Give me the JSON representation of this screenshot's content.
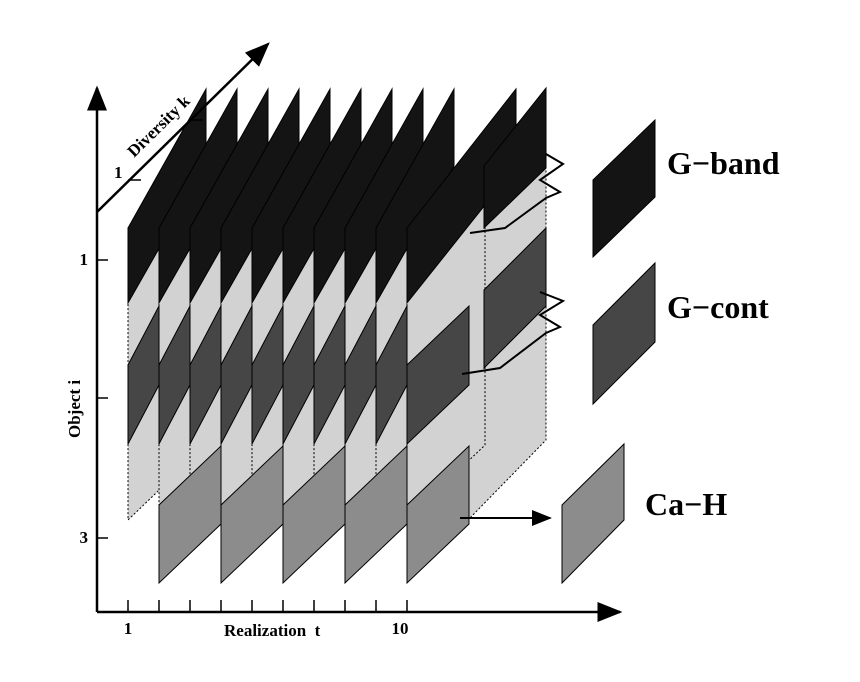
{
  "axes": {
    "object": {
      "label": "Object  i",
      "ticks": [
        "1",
        "3"
      ]
    },
    "realization": {
      "label": "Realization  t",
      "ticks": [
        "1",
        "10"
      ]
    },
    "diversity": {
      "label": "Diversity  k",
      "ticks": [
        "1"
      ]
    }
  },
  "legend": [
    {
      "id": "g-band",
      "label": "G−band",
      "color": "#141414"
    },
    {
      "id": "g-cont",
      "label": "G−cont",
      "color": "#464646"
    },
    {
      "id": "ca-h",
      "label": "Ca−H",
      "color": "#8c8c8c"
    }
  ],
  "colors": {
    "background": "#ffffff",
    "plane": "#d2d2d2",
    "g_band": "#141414",
    "g_cont": "#464646",
    "ca_h": "#8c8c8c"
  }
}
